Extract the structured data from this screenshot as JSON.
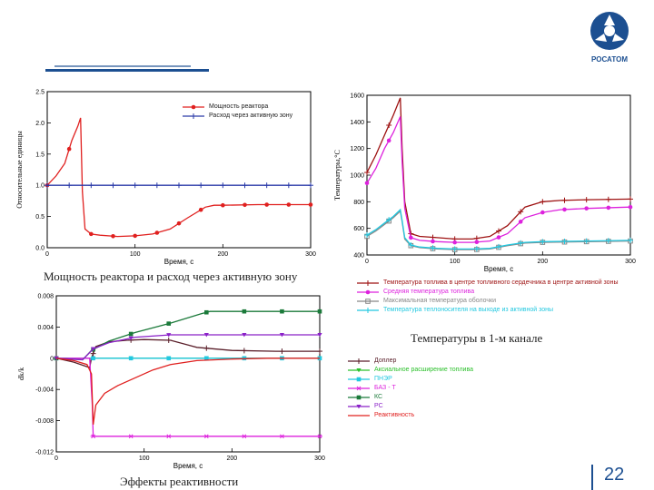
{
  "logo_text": "РОСАТОМ",
  "page_number": "22",
  "colors": {
    "red": "#e0201f",
    "blue": "#2a3aa8",
    "dark_red": "#9e1212",
    "magenta": "#dd22dd",
    "gray": "#888888",
    "cyan": "#22c8e0",
    "dark": "#5a1f2a",
    "green": "#2cc02c",
    "dark_green": "#1b7a3a",
    "purple": "#8a20c8",
    "brand": "#1c4f91"
  },
  "captions": {
    "power": "Мощность реактора и расход  через активную зону",
    "temps": "Температуры в 1-м канале",
    "reactivity": "Эффекты реактивности"
  },
  "chart_data": [
    {
      "type": "line",
      "id": "power",
      "xlabel": "Время, с",
      "ylabel": "Относительные единицы",
      "xlim": [
        0,
        300
      ],
      "ylim": [
        0,
        2.5
      ],
      "xticks": [
        "0",
        "100",
        "200",
        "300"
      ],
      "yticks": [
        "0.0",
        "0.5",
        "1.0",
        "1.5",
        "2.0",
        "2.5"
      ],
      "series": [
        {
          "name": "Мощность реактора",
          "color": "#e0201f",
          "x": [
            0,
            10,
            20,
            28,
            35,
            38,
            40,
            43,
            50,
            60,
            80,
            100,
            120,
            140,
            160,
            180,
            190,
            200,
            240,
            300
          ],
          "y": [
            1.0,
            1.15,
            1.35,
            1.72,
            1.95,
            2.08,
            0.9,
            0.3,
            0.22,
            0.2,
            0.18,
            0.19,
            0.22,
            0.3,
            0.48,
            0.65,
            0.68,
            0.68,
            0.69,
            0.69
          ],
          "marker_x": [
            0,
            25,
            50,
            75,
            100,
            125,
            150,
            175,
            200,
            225,
            250,
            275,
            300
          ]
        },
        {
          "name": "Расход через активную зону",
          "color": "#2a3aa8",
          "x": [
            0,
            50,
            100,
            150,
            200,
            250,
            300
          ],
          "y": [
            1.0,
            1.0,
            1.0,
            1.0,
            1.0,
            1.0,
            1.0
          ],
          "marker_x": [
            0,
            25,
            50,
            75,
            100,
            125,
            150,
            175,
            200,
            225,
            250,
            275,
            300
          ]
        }
      ]
    },
    {
      "type": "line",
      "id": "temps",
      "xlabel": "Время, с",
      "ylabel": "Температуры,°С",
      "xlim": [
        0,
        300
      ],
      "ylim": [
        400,
        1600
      ],
      "xticks": [
        "0",
        "100",
        "200",
        "300"
      ],
      "yticks": [
        "400",
        "600",
        "800",
        "1000",
        "1200",
        "1400",
        "1600"
      ],
      "series": [
        {
          "name": "Температура топлива в центре топливного сердечника в центре активной зоны",
          "color": "#9e1212",
          "x": [
            0,
            10,
            20,
            30,
            38,
            40,
            43,
            50,
            60,
            80,
            100,
            120,
            140,
            160,
            180,
            200,
            220,
            250,
            300
          ],
          "y": [
            1020,
            1150,
            1300,
            1450,
            1580,
            1200,
            800,
            560,
            540,
            530,
            520,
            520,
            540,
            620,
            760,
            800,
            810,
            815,
            820
          ],
          "marker_x": [
            0,
            25,
            50,
            75,
            100,
            125,
            150,
            175,
            200,
            225,
            250,
            275,
            300
          ]
        },
        {
          "name": "Средняя температура топлива",
          "color": "#dd22dd",
          "x": [
            0,
            10,
            20,
            30,
            38,
            40,
            43,
            50,
            60,
            80,
            100,
            120,
            140,
            160,
            180,
            200,
            220,
            250,
            300
          ],
          "y": [
            940,
            1050,
            1200,
            1320,
            1440,
            1100,
            750,
            530,
            510,
            500,
            495,
            495,
            505,
            560,
            680,
            720,
            740,
            750,
            760
          ],
          "marker_x": [
            0,
            25,
            50,
            75,
            100,
            125,
            150,
            175,
            200,
            225,
            250,
            275,
            300
          ]
        },
        {
          "name": "Максимальная температура оболочки",
          "color": "#888888",
          "x": [
            0,
            10,
            20,
            30,
            38,
            40,
            43,
            50,
            60,
            80,
            100,
            120,
            140,
            160,
            180,
            200,
            250,
            300
          ],
          "y": [
            540,
            580,
            630,
            680,
            730,
            650,
            520,
            470,
            455,
            445,
            440,
            440,
            445,
            470,
            490,
            495,
            500,
            505
          ],
          "marker_x": [
            0,
            25,
            50,
            75,
            100,
            125,
            150,
            175,
            200,
            225,
            250,
            275,
            300
          ]
        },
        {
          "name": "Температура теплоносителя на выходе из активной зоны",
          "color": "#22c8e0",
          "x": [
            0,
            10,
            20,
            30,
            38,
            40,
            43,
            50,
            60,
            80,
            100,
            120,
            140,
            160,
            180,
            200,
            250,
            300
          ],
          "y": [
            550,
            590,
            640,
            690,
            740,
            660,
            530,
            475,
            460,
            450,
            445,
            445,
            450,
            475,
            495,
            500,
            505,
            510
          ],
          "marker_x": [
            0,
            25,
            50,
            75,
            100,
            125,
            150,
            175,
            200,
            225,
            250,
            275,
            300
          ]
        }
      ]
    },
    {
      "type": "line",
      "id": "reactivity",
      "xlabel": "Время, с",
      "ylabel": "dk/k",
      "xlim": [
        0,
        300
      ],
      "ylim": [
        -0.012,
        0.008
      ],
      "xticks": [
        "0",
        "100",
        "200",
        "300"
      ],
      "yticks": [
        "-0.012",
        "-0.008",
        "-0.004",
        "0",
        "0.004",
        "0.008"
      ],
      "series": [
        {
          "name": "Доплер",
          "color": "#5a1f2a",
          "x": [
            0,
            20,
            38,
            40,
            45,
            60,
            80,
            100,
            130,
            160,
            200,
            250,
            300
          ],
          "y": [
            0,
            -0.0005,
            -0.0012,
            0.0,
            0.0015,
            0.0021,
            0.0023,
            0.0024,
            0.0023,
            0.0014,
            0.001,
            0.0009,
            0.0009
          ],
          "marker_x": [
            0,
            42,
            85,
            128,
            171,
            214,
            257,
            300
          ]
        },
        {
          "name": "Аксиальное расширение топлива",
          "color": "#2cc02c",
          "x": [
            0,
            300
          ],
          "y": [
            0,
            0
          ],
          "marker_x": [
            0,
            42,
            85,
            128,
            171,
            214,
            257,
            300
          ]
        },
        {
          "name": "ПНЭР",
          "color": "#22c8e0",
          "x": [
            0,
            300
          ],
          "y": [
            0,
            0
          ],
          "marker_x": [
            0,
            42,
            85,
            128,
            171,
            214,
            257,
            300
          ]
        },
        {
          "name": "БАЗ - Т",
          "color": "#dd22dd",
          "x": [
            0,
            38,
            41,
            42,
            300
          ],
          "y": [
            0,
            0,
            -0.006,
            -0.01,
            -0.01
          ],
          "marker_x": [
            42,
            85,
            128,
            171,
            214,
            257,
            300
          ]
        },
        {
          "name": "КС",
          "color": "#1b7a3a",
          "x": [
            0,
            30,
            40,
            60,
            90,
            130,
            165,
            175,
            200,
            300
          ],
          "y": [
            0,
            -0.0002,
            0.001,
            0.0022,
            0.0033,
            0.0045,
            0.0057,
            0.006,
            0.006,
            0.006
          ],
          "marker_x": [
            0,
            42,
            85,
            128,
            171,
            214,
            257,
            300
          ]
        },
        {
          "name": "РС",
          "color": "#8a20c8",
          "x": [
            0,
            30,
            42,
            60,
            90,
            130,
            170,
            300
          ],
          "y": [
            0,
            -0.0002,
            0.0012,
            0.002,
            0.0027,
            0.003,
            0.003,
            0.003
          ],
          "marker_x": [
            0,
            42,
            85,
            128,
            171,
            214,
            257,
            300
          ]
        },
        {
          "name": "Реактивность",
          "color": "#e0201f",
          "x": [
            0,
            20,
            35,
            40,
            42,
            45,
            55,
            70,
            90,
            110,
            130,
            160,
            200,
            240,
            300
          ],
          "y": [
            0,
            -0.0003,
            -0.0008,
            -0.002,
            -0.0085,
            -0.006,
            -0.0045,
            -0.0035,
            -0.0025,
            -0.0015,
            -0.0008,
            -0.0003,
            -0.0001,
            0.0,
            0.0
          ]
        }
      ]
    }
  ]
}
